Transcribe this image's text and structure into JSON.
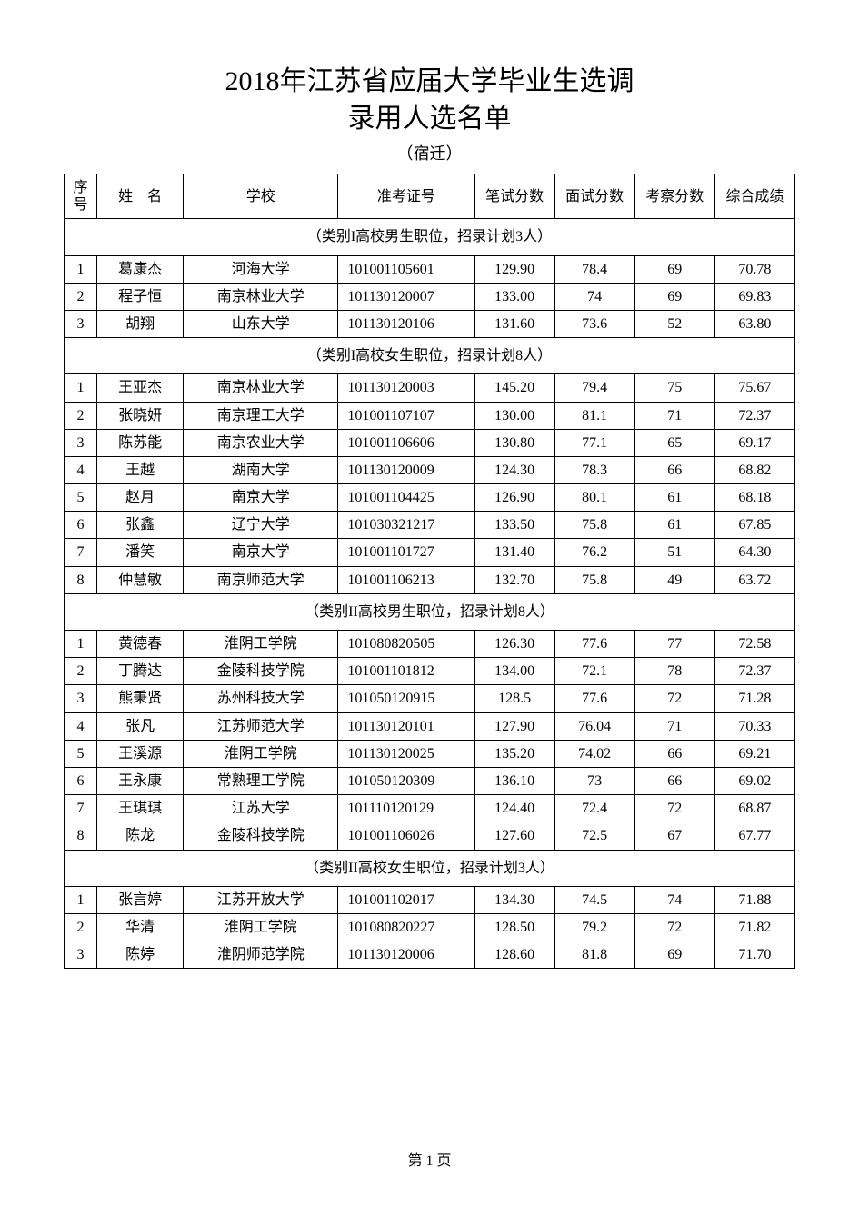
{
  "title_line1": "2018年江苏省应届大学毕业生选调",
  "title_line2": "录用人选名单",
  "subtitle": "（宿迁）",
  "footer": "第 1 页",
  "columns": {
    "seq": "序号",
    "name": "姓　名",
    "school": "学校",
    "exam_no": "准考证号",
    "written": "笔试分数",
    "interview": "面试分数",
    "review": "考察分数",
    "total": "综合成绩"
  },
  "groups": [
    {
      "label": "（类别I高校男生职位，招录计划3人）",
      "rows": [
        {
          "seq": "1",
          "name": "葛康杰",
          "school": "河海大学",
          "exam": "101001105601",
          "written": "129.90",
          "interview": "78.4",
          "review": "69",
          "total": "70.78"
        },
        {
          "seq": "2",
          "name": "程子恒",
          "school": "南京林业大学",
          "exam": "101130120007",
          "written": "133.00",
          "interview": "74",
          "review": "69",
          "total": "69.83"
        },
        {
          "seq": "3",
          "name": "胡翔",
          "school": "山东大学",
          "exam": "101130120106",
          "written": "131.60",
          "interview": "73.6",
          "review": "52",
          "total": "63.80"
        }
      ]
    },
    {
      "label": "（类别I高校女生职位，招录计划8人）",
      "rows": [
        {
          "seq": "1",
          "name": "王亚杰",
          "school": "南京林业大学",
          "exam": "101130120003",
          "written": "145.20",
          "interview": "79.4",
          "review": "75",
          "total": "75.67"
        },
        {
          "seq": "2",
          "name": "张晓妍",
          "school": "南京理工大学",
          "exam": "101001107107",
          "written": "130.00",
          "interview": "81.1",
          "review": "71",
          "total": "72.37"
        },
        {
          "seq": "3",
          "name": "陈苏能",
          "school": "南京农业大学",
          "exam": "101001106606",
          "written": "130.80",
          "interview": "77.1",
          "review": "65",
          "total": "69.17"
        },
        {
          "seq": "4",
          "name": "王越",
          "school": "湖南大学",
          "exam": "101130120009",
          "written": "124.30",
          "interview": "78.3",
          "review": "66",
          "total": "68.82"
        },
        {
          "seq": "5",
          "name": "赵月",
          "school": "南京大学",
          "exam": "101001104425",
          "written": "126.90",
          "interview": "80.1",
          "review": "61",
          "total": "68.18"
        },
        {
          "seq": "6",
          "name": "张鑫",
          "school": "辽宁大学",
          "exam": "101030321217",
          "written": "133.50",
          "interview": "75.8",
          "review": "61",
          "total": "67.85"
        },
        {
          "seq": "7",
          "name": "潘笑",
          "school": "南京大学",
          "exam": "101001101727",
          "written": "131.40",
          "interview": "76.2",
          "review": "51",
          "total": "64.30"
        },
        {
          "seq": "8",
          "name": "仲慧敏",
          "school": "南京师范大学",
          "exam": "101001106213",
          "written": "132.70",
          "interview": "75.8",
          "review": "49",
          "total": "63.72"
        }
      ]
    },
    {
      "label": "（类别II高校男生职位，招录计划8人）",
      "rows": [
        {
          "seq": "1",
          "name": "黄德春",
          "school": "淮阴工学院",
          "exam": "101080820505",
          "written": "126.30",
          "interview": "77.6",
          "review": "77",
          "total": "72.58"
        },
        {
          "seq": "2",
          "name": "丁腾达",
          "school": "金陵科技学院",
          "exam": "101001101812",
          "written": "134.00",
          "interview": "72.1",
          "review": "78",
          "total": "72.37"
        },
        {
          "seq": "3",
          "name": "熊秉贤",
          "school": "苏州科技大学",
          "exam": "101050120915",
          "written": "128.5",
          "interview": "77.6",
          "review": "72",
          "total": "71.28"
        },
        {
          "seq": "4",
          "name": "张凡",
          "school": "江苏师范大学",
          "exam": "101130120101",
          "written": "127.90",
          "interview": "76.04",
          "review": "71",
          "total": "70.33"
        },
        {
          "seq": "5",
          "name": "王溪源",
          "school": "淮阴工学院",
          "exam": "101130120025",
          "written": "135.20",
          "interview": "74.02",
          "review": "66",
          "total": "69.21"
        },
        {
          "seq": "6",
          "name": "王永康",
          "school": "常熟理工学院",
          "exam": "101050120309",
          "written": "136.10",
          "interview": "73",
          "review": "66",
          "total": "69.02"
        },
        {
          "seq": "7",
          "name": "王琪琪",
          "school": "江苏大学",
          "exam": "101110120129",
          "written": "124.40",
          "interview": "72.4",
          "review": "72",
          "total": "68.87"
        },
        {
          "seq": "8",
          "name": "陈龙",
          "school": "金陵科技学院",
          "exam": "101001106026",
          "written": "127.60",
          "interview": "72.5",
          "review": "67",
          "total": "67.77"
        }
      ]
    },
    {
      "label": "（类别II高校女生职位，招录计划3人）",
      "rows": [
        {
          "seq": "1",
          "name": "张言婷",
          "school": "江苏开放大学",
          "exam": "101001102017",
          "written": "134.30",
          "interview": "74.5",
          "review": "74",
          "total": "71.88"
        },
        {
          "seq": "2",
          "name": "华清",
          "school": "淮阴工学院",
          "exam": "101080820227",
          "written": "128.50",
          "interview": "79.2",
          "review": "72",
          "total": "71.82"
        },
        {
          "seq": "3",
          "name": "陈婷",
          "school": "淮阴师范学院",
          "exam": "101130120006",
          "written": "128.60",
          "interview": "81.8",
          "review": "69",
          "total": "71.70"
        }
      ]
    }
  ]
}
